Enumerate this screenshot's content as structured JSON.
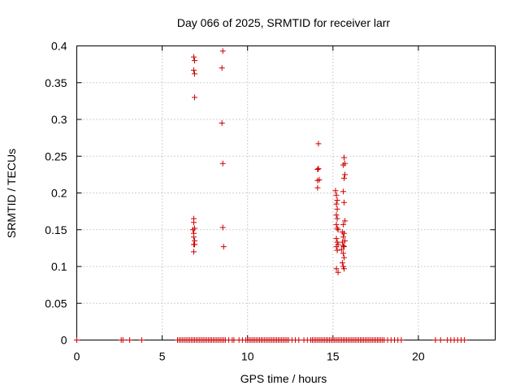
{
  "chart_data": {
    "type": "scatter",
    "title": "Day 066 of 2025, SRMTID for receiver larr",
    "xlabel": "GPS time / hours",
    "ylabel": "SRMTID / TECUs",
    "xlim": [
      0,
      24.5
    ],
    "ylim": [
      0,
      0.4
    ],
    "xticks": [
      0,
      5,
      10,
      15,
      20
    ],
    "xtick_labels": [
      "0",
      "5",
      "10",
      "15",
      "20"
    ],
    "yticks": [
      0,
      0.05,
      0.1,
      0.15,
      0.2,
      0.25,
      0.3,
      0.35,
      0.4
    ],
    "ytick_labels": [
      "0",
      "0.05",
      "0.1",
      "0.15",
      "0.2",
      "0.25",
      "0.3",
      "0.35",
      "0.4"
    ],
    "grid": true,
    "marker": "+",
    "color": "#cc0000",
    "series": [
      {
        "name": "SRMTID",
        "x": [
          6.85,
          6.9,
          6.85,
          6.9,
          6.9,
          6.85,
          6.85,
          6.9,
          6.8,
          6.85,
          6.85,
          6.9,
          6.85,
          6.9,
          6.85,
          8.55,
          8.5,
          8.5,
          8.55,
          8.55,
          8.6,
          14.15,
          14.1,
          14.15,
          14.1,
          14.2,
          14.1,
          15.15,
          15.2,
          15.25,
          15.2,
          15.25,
          15.2,
          15.25,
          15.2,
          15.25,
          15.3,
          15.2,
          15.25,
          15.3,
          15.2,
          15.25,
          15.2,
          15.3,
          15.65,
          15.7,
          15.6,
          15.7,
          15.65,
          15.6,
          15.65,
          15.7,
          15.6,
          15.55,
          15.65,
          15.6,
          15.7,
          15.55,
          15.6,
          15.65,
          15.5,
          15.6,
          15.65,
          15.55,
          15.6,
          15.65
        ],
        "y": [
          0.385,
          0.38,
          0.367,
          0.362,
          0.33,
          0.165,
          0.16,
          0.152,
          0.15,
          0.145,
          0.14,
          0.135,
          0.13,
          0.13,
          0.12,
          0.393,
          0.37,
          0.295,
          0.24,
          0.153,
          0.127,
          0.267,
          0.232,
          0.233,
          0.217,
          0.218,
          0.207,
          0.203,
          0.197,
          0.19,
          0.185,
          0.178,
          0.17,
          0.165,
          0.157,
          0.152,
          0.15,
          0.138,
          0.133,
          0.13,
          0.127,
          0.122,
          0.097,
          0.092,
          0.248,
          0.24,
          0.238,
          0.225,
          0.22,
          0.202,
          0.187,
          0.162,
          0.157,
          0.147,
          0.145,
          0.14,
          0.135,
          0.133,
          0.128,
          0.127,
          0.123,
          0.118,
          0.112,
          0.105,
          0.1,
          0.097
        ]
      },
      {
        "name": "zero-values",
        "x": [
          0.0,
          2.6,
          2.7,
          3.1,
          3.8,
          5.9,
          6.0,
          6.1,
          6.2,
          6.3,
          6.4,
          6.5,
          6.6,
          6.7,
          6.8,
          6.9,
          7.0,
          7.1,
          7.2,
          7.3,
          7.4,
          7.5,
          7.6,
          7.7,
          7.8,
          7.9,
          8.0,
          8.1,
          8.2,
          8.3,
          8.4,
          8.5,
          8.6,
          8.7,
          8.9,
          9.1,
          9.2,
          9.5,
          9.7,
          9.9,
          10.0,
          10.1,
          10.2,
          10.3,
          10.4,
          10.5,
          10.6,
          10.7,
          10.8,
          10.9,
          11.0,
          11.1,
          11.2,
          11.3,
          11.4,
          11.5,
          11.6,
          11.7,
          11.8,
          11.9,
          12.0,
          12.1,
          12.2,
          12.3,
          12.4,
          12.6,
          12.8,
          13.0,
          13.3,
          13.5,
          13.7,
          13.8,
          13.9,
          14.0,
          14.1,
          14.2,
          14.3,
          14.4,
          14.5,
          14.6,
          14.7,
          14.8,
          14.9,
          15.0,
          15.1,
          15.2,
          15.3,
          15.4,
          15.5,
          15.6,
          15.7,
          15.8,
          15.9,
          16.0,
          16.1,
          16.2,
          16.3,
          16.4,
          16.5,
          16.6,
          16.7,
          16.8,
          16.9,
          17.0,
          17.1,
          17.2,
          17.3,
          17.4,
          17.5,
          17.6,
          17.7,
          17.8,
          17.9,
          18.0,
          18.2,
          18.4,
          18.6,
          18.8,
          19.0,
          21.0,
          21.3,
          21.7,
          21.9,
          22.1,
          22.3,
          22.5,
          22.7
        ],
        "y_constant": 0
      }
    ]
  }
}
